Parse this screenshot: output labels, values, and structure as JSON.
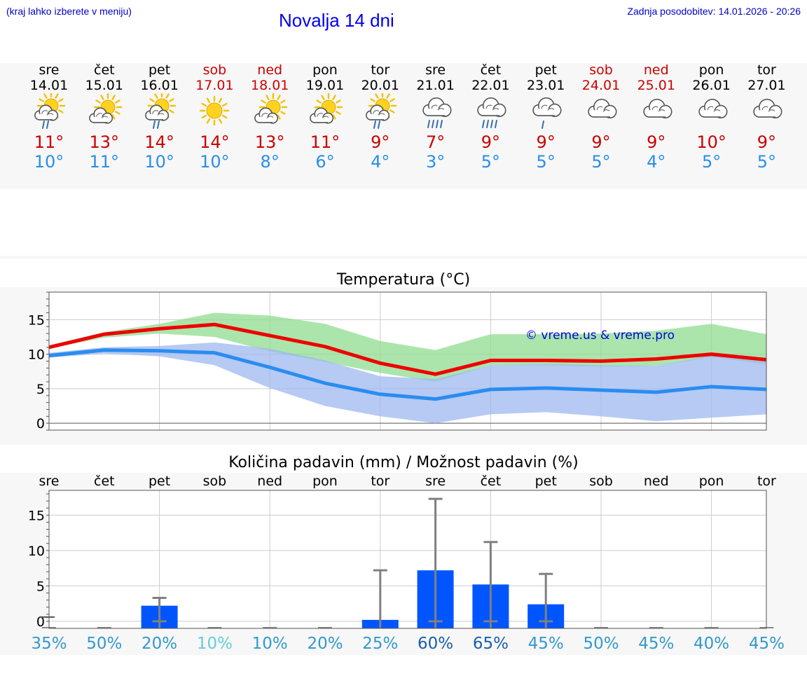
{
  "header": {
    "location_hint": "(kraj lahko izberete v meniju)",
    "title": "Novalja 14 dni",
    "updated": "Zadnja posodobitev: 14.01.2026 - 20:26"
  },
  "days": [
    {
      "name": "sre",
      "date": "14.01",
      "weekend": false,
      "icon": "sun-cloud-rain-icon",
      "tmax": "11°",
      "tmin": "10°"
    },
    {
      "name": "čet",
      "date": "15.01",
      "weekend": false,
      "icon": "sun-cloud-icon",
      "tmax": "13°",
      "tmin": "11°"
    },
    {
      "name": "pet",
      "date": "16.01",
      "weekend": false,
      "icon": "sun-cloud-rain-icon",
      "tmax": "14°",
      "tmin": "10°"
    },
    {
      "name": "sob",
      "date": "17.01",
      "weekend": true,
      "icon": "sun-icon",
      "tmax": "14°",
      "tmin": "10°"
    },
    {
      "name": "ned",
      "date": "18.01",
      "weekend": true,
      "icon": "sun-cloud-icon",
      "tmax": "13°",
      "tmin": "8°"
    },
    {
      "name": "pon",
      "date": "19.01",
      "weekend": false,
      "icon": "sun-cloud-icon",
      "tmax": "11°",
      "tmin": "6°"
    },
    {
      "name": "tor",
      "date": "20.01",
      "weekend": false,
      "icon": "sun-cloud-rain-icon",
      "tmax": "9°",
      "tmin": "4°"
    },
    {
      "name": "sre",
      "date": "21.01",
      "weekend": false,
      "icon": "cloud-heavy-rain-icon",
      "tmax": "7°",
      "tmin": "3°"
    },
    {
      "name": "čet",
      "date": "22.01",
      "weekend": false,
      "icon": "cloud-heavy-rain-icon",
      "tmax": "9°",
      "tmin": "5°"
    },
    {
      "name": "pet",
      "date": "23.01",
      "weekend": false,
      "icon": "cloud-rain-icon",
      "tmax": "9°",
      "tmin": "5°"
    },
    {
      "name": "sob",
      "date": "24.01",
      "weekend": true,
      "icon": "cloud-icon",
      "tmax": "9°",
      "tmin": "5°"
    },
    {
      "name": "ned",
      "date": "25.01",
      "weekend": true,
      "icon": "cloud-icon",
      "tmax": "9°",
      "tmin": "4°"
    },
    {
      "name": "pon",
      "date": "26.01",
      "weekend": false,
      "icon": "cloud-icon",
      "tmax": "10°",
      "tmin": "5°"
    },
    {
      "name": "tor",
      "date": "27.01",
      "weekend": false,
      "icon": "cloud-icon",
      "tmax": "9°",
      "tmin": "5°"
    }
  ],
  "chart_data": [
    {
      "type": "line",
      "title": "Temperatura (°C)",
      "watermark": "© vreme.us & vreme.pro",
      "ylim": [
        -1,
        19
      ],
      "yticks": [
        0,
        5,
        10,
        15
      ],
      "x": [
        0,
        1,
        2,
        3,
        4,
        5,
        6,
        7,
        8,
        9,
        10,
        11,
        12,
        13
      ],
      "series": [
        {
          "name": "max",
          "color": "#ee0000",
          "values": [
            11.0,
            12.9,
            13.7,
            14.3,
            12.7,
            11.1,
            8.7,
            7.1,
            9.1,
            9.1,
            9.0,
            9.3,
            10.0,
            9.2
          ]
        },
        {
          "name": "min",
          "color": "#2a8cf0",
          "values": [
            9.8,
            10.6,
            10.5,
            10.2,
            8.1,
            5.8,
            4.2,
            3.5,
            4.9,
            5.1,
            4.8,
            4.5,
            5.3,
            4.9
          ]
        }
      ],
      "bands": [
        {
          "name": "max-range",
          "color": "#8fdc8f",
          "upper": [
            11.3,
            13.2,
            14.4,
            16.0,
            15.6,
            14.4,
            11.9,
            10.6,
            12.9,
            12.9,
            13.0,
            13.4,
            14.4,
            12.9
          ],
          "lower": [
            10.8,
            12.4,
            13.0,
            12.5,
            10.4,
            8.9,
            7.3,
            6.0,
            8.4,
            8.4,
            8.2,
            8.3,
            9.6,
            8.5
          ]
        },
        {
          "name": "min-range",
          "color": "#9db8f0",
          "upper": [
            10.2,
            11.0,
            11.2,
            11.7,
            10.8,
            9.1,
            6.8,
            6.4,
            8.4,
            8.6,
            8.4,
            8.3,
            9.8,
            9.0
          ],
          "lower": [
            9.5,
            10.1,
            9.7,
            8.4,
            5.1,
            2.5,
            1.0,
            0.0,
            1.3,
            1.6,
            1.0,
            0.3,
            0.8,
            1.3
          ]
        }
      ]
    },
    {
      "type": "bar",
      "title": "Količina padavin (mm) / Možnost padavin (%)",
      "ylim": [
        -1,
        18.5
      ],
      "yticks": [
        0,
        5,
        10,
        15
      ],
      "categories": [
        "sre",
        "čet",
        "pet",
        "sob",
        "ned",
        "pon",
        "tor",
        "sre",
        "čet",
        "pet",
        "sob",
        "ned",
        "pon",
        "tor"
      ],
      "values": [
        0,
        0,
        2.2,
        0,
        0,
        0,
        0.2,
        7.2,
        5.2,
        2.4,
        0,
        0,
        0,
        0
      ],
      "error_high": [
        0,
        0,
        3.3,
        0,
        0,
        0,
        7.2,
        17.3,
        11.2,
        6.7,
        0,
        0,
        0,
        0
      ],
      "error_low": [
        0,
        0,
        0,
        0,
        0,
        0,
        0,
        0,
        0,
        0,
        0,
        0,
        0,
        0
      ],
      "probability": [
        "35%",
        "50%",
        "20%",
        "10%",
        "10%",
        "20%",
        "25%",
        "60%",
        "65%",
        "45%",
        "50%",
        "45%",
        "40%",
        "45%"
      ],
      "probability_colors": [
        "#3399cc",
        "#3399cc",
        "#3399cc",
        "#66ccdd",
        "#3399cc",
        "#3399cc",
        "#3399cc",
        "#1a5faa",
        "#1a5faa",
        "#3399cc",
        "#3399cc",
        "#3399cc",
        "#3399cc",
        "#3399cc"
      ],
      "bar_color": "#0055ff",
      "whisker_color": "#808080"
    }
  ]
}
